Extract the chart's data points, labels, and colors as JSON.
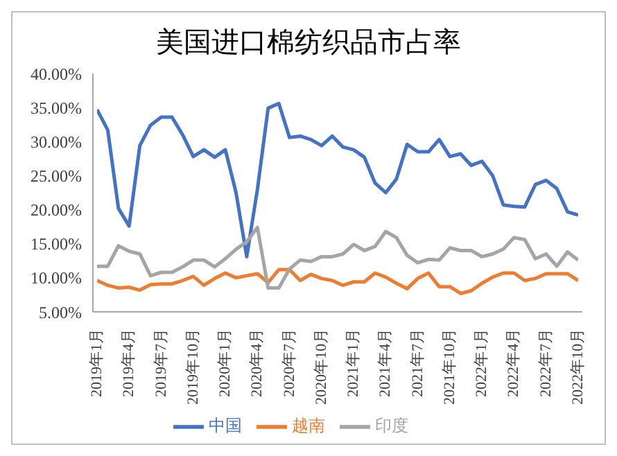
{
  "chart_data": {
    "type": "line",
    "title": "美国进口棉纺织品市占率",
    "categories": [
      "2019年1月",
      null,
      null,
      "2019年4月",
      null,
      null,
      "2019年7月",
      null,
      null,
      "2019年10月",
      null,
      null,
      "2020年1月",
      null,
      null,
      "2020年4月",
      null,
      null,
      "2020年7月",
      null,
      null,
      "2020年10月",
      null,
      null,
      "2021年1月",
      null,
      null,
      "2021年4月",
      null,
      null,
      "2021年7月",
      null,
      null,
      "2021年10月",
      null,
      null,
      "2022年1月",
      null,
      null,
      "2022年4月",
      null,
      null,
      "2022年7月",
      null,
      null,
      "2022年10月"
    ],
    "series": [
      {
        "name": "中国",
        "color": "#4472c4",
        "values": [
          34.7,
          31.7,
          20.2,
          17.6,
          29.4,
          32.4,
          33.6,
          33.6,
          31.0,
          27.8,
          28.8,
          27.7,
          28.8,
          22.5,
          13.1,
          23.0,
          34.9,
          35.6,
          30.6,
          30.8,
          30.3,
          29.4,
          30.8,
          29.2,
          28.8,
          27.7,
          23.9,
          22.5,
          24.5,
          29.6,
          28.5,
          28.5,
          30.3,
          27.8,
          28.2,
          26.5,
          27.1,
          25.0,
          20.7,
          20.5,
          20.4,
          23.7,
          24.3,
          23.1,
          19.7,
          19.2
        ]
      },
      {
        "name": "越南",
        "color": "#ed7d31",
        "values": [
          9.6,
          8.9,
          8.5,
          8.6,
          8.2,
          9.0,
          9.1,
          9.1,
          9.6,
          10.2,
          8.9,
          9.9,
          10.7,
          10.0,
          10.3,
          10.6,
          9.3,
          11.2,
          11.2,
          9.6,
          10.5,
          9.9,
          9.6,
          8.9,
          9.4,
          9.4,
          10.7,
          10.1,
          9.2,
          8.4,
          9.9,
          10.7,
          8.7,
          8.7,
          7.7,
          8.1,
          9.2,
          10.1,
          10.7,
          10.7,
          9.6,
          9.9,
          10.6,
          10.6,
          10.6,
          9.6
        ]
      },
      {
        "name": "印度",
        "color": "#a5a5a5",
        "values": [
          11.7,
          11.7,
          14.7,
          13.9,
          13.5,
          10.3,
          10.8,
          10.8,
          11.6,
          12.6,
          12.6,
          11.6,
          12.8,
          14.2,
          15.3,
          17.4,
          8.5,
          8.5,
          11.3,
          12.6,
          12.4,
          13.1,
          13.1,
          13.5,
          14.9,
          14.0,
          14.6,
          16.8,
          15.9,
          13.3,
          12.2,
          12.7,
          12.6,
          14.4,
          14.0,
          14.0,
          13.1,
          13.5,
          14.2,
          15.9,
          15.6,
          12.8,
          13.5,
          11.7,
          13.8,
          12.6
        ]
      }
    ],
    "ylim": [
      5,
      40
    ],
    "yticks": [
      {
        "value": 5,
        "label": "5.00%"
      },
      {
        "value": 10,
        "label": "10.00%"
      },
      {
        "value": 15,
        "label": "15.00%"
      },
      {
        "value": 20,
        "label": "20.00%"
      },
      {
        "value": 25,
        "label": "25.00%"
      },
      {
        "value": 30,
        "label": "30.00%"
      },
      {
        "value": 35,
        "label": "35.00%"
      },
      {
        "value": 40,
        "label": "40.00%"
      }
    ],
    "grid": false,
    "legend": "bottom",
    "marker": "none",
    "line_style": "solid"
  }
}
